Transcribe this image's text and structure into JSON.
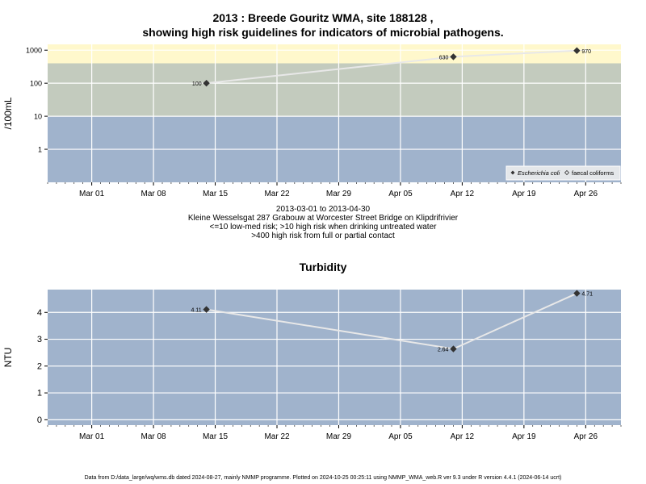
{
  "title_line1": "2013 : Breede Gouritz WMA, site 188128 ,",
  "title_line2": "showing high risk guidelines for indicators of microbial pathogens.",
  "caption": {
    "line1": "2013-03-01 to 2013-04-30",
    "line2": "Kleine Wesselsgat 287 Grabouw at Worcester Street Bridge on Klipdrifrivier",
    "line3": "<=10 low-med risk; >10 high risk when drinking untreated water",
    "line4": ">400 high risk from full or partial contact"
  },
  "footer": "Data from D:/data_large/wq/wms.db dated 2024-08-27, mainly NMMP programme. Plotted on 2024-10-25 00:25:11 using NMMP_WMA_web.R ver 9.3 under R version 4.4.1 (2024-06-14 ucrt)",
  "colors": {
    "panel_blue": "#a0b3cc",
    "panel_green": "#c3cbbe",
    "panel_yellow": "#fff8cc",
    "grid": "#ffffff",
    "line": "#e8e8e8",
    "marker": "#333333"
  },
  "chart_data": [
    {
      "type": "line",
      "title": "",
      "xlabel": "",
      "ylabel": "/100mL",
      "y_scale": "log10",
      "ylim": [
        0.1,
        1500
      ],
      "xlim": [
        "2013-02-24",
        "2013-04-30"
      ],
      "x_ticks": [
        "Mar 01",
        "Mar 08",
        "Mar 15",
        "Mar 22",
        "Mar 29",
        "Apr 05",
        "Apr 12",
        "Apr 19",
        "Apr 26"
      ],
      "y_ticks": [
        "1",
        "10",
        "100",
        "1000"
      ],
      "grid": true,
      "risk_bands": [
        {
          "from": 0.1,
          "to": 10,
          "color": "#a0b3cc"
        },
        {
          "from": 10,
          "to": 400,
          "color": "#c3cbbe"
        },
        {
          "from": 400,
          "to": 1500,
          "color": "#fff8cc"
        }
      ],
      "legend_position": "bottom-right",
      "legend": [
        "Escherichia coli",
        "faecal coliforms"
      ],
      "series": [
        {
          "name": "Escherichia coli",
          "x": [
            "2013-03-14",
            "2013-04-11",
            "2013-04-25"
          ],
          "y": [
            100,
            630,
            970
          ],
          "labels": [
            "100",
            "630",
            "970"
          ]
        }
      ]
    },
    {
      "type": "line",
      "title": "Turbidity",
      "xlabel": "",
      "ylabel": "NTU",
      "ylim": [
        -0.2,
        4.85
      ],
      "xlim": [
        "2013-02-24",
        "2013-04-30"
      ],
      "x_ticks": [
        "Mar 01",
        "Mar 08",
        "Mar 15",
        "Mar 22",
        "Mar 29",
        "Apr 05",
        "Apr 12",
        "Apr 19",
        "Apr 26"
      ],
      "y_ticks": [
        "0",
        "1",
        "2",
        "3",
        "4"
      ],
      "grid": true,
      "series": [
        {
          "x": [
            "2013-03-14",
            "2013-04-11",
            "2013-04-25"
          ],
          "y": [
            4.11,
            2.64,
            4.71
          ],
          "labels": [
            "4.11",
            "2.64",
            "4.71"
          ]
        }
      ]
    }
  ]
}
